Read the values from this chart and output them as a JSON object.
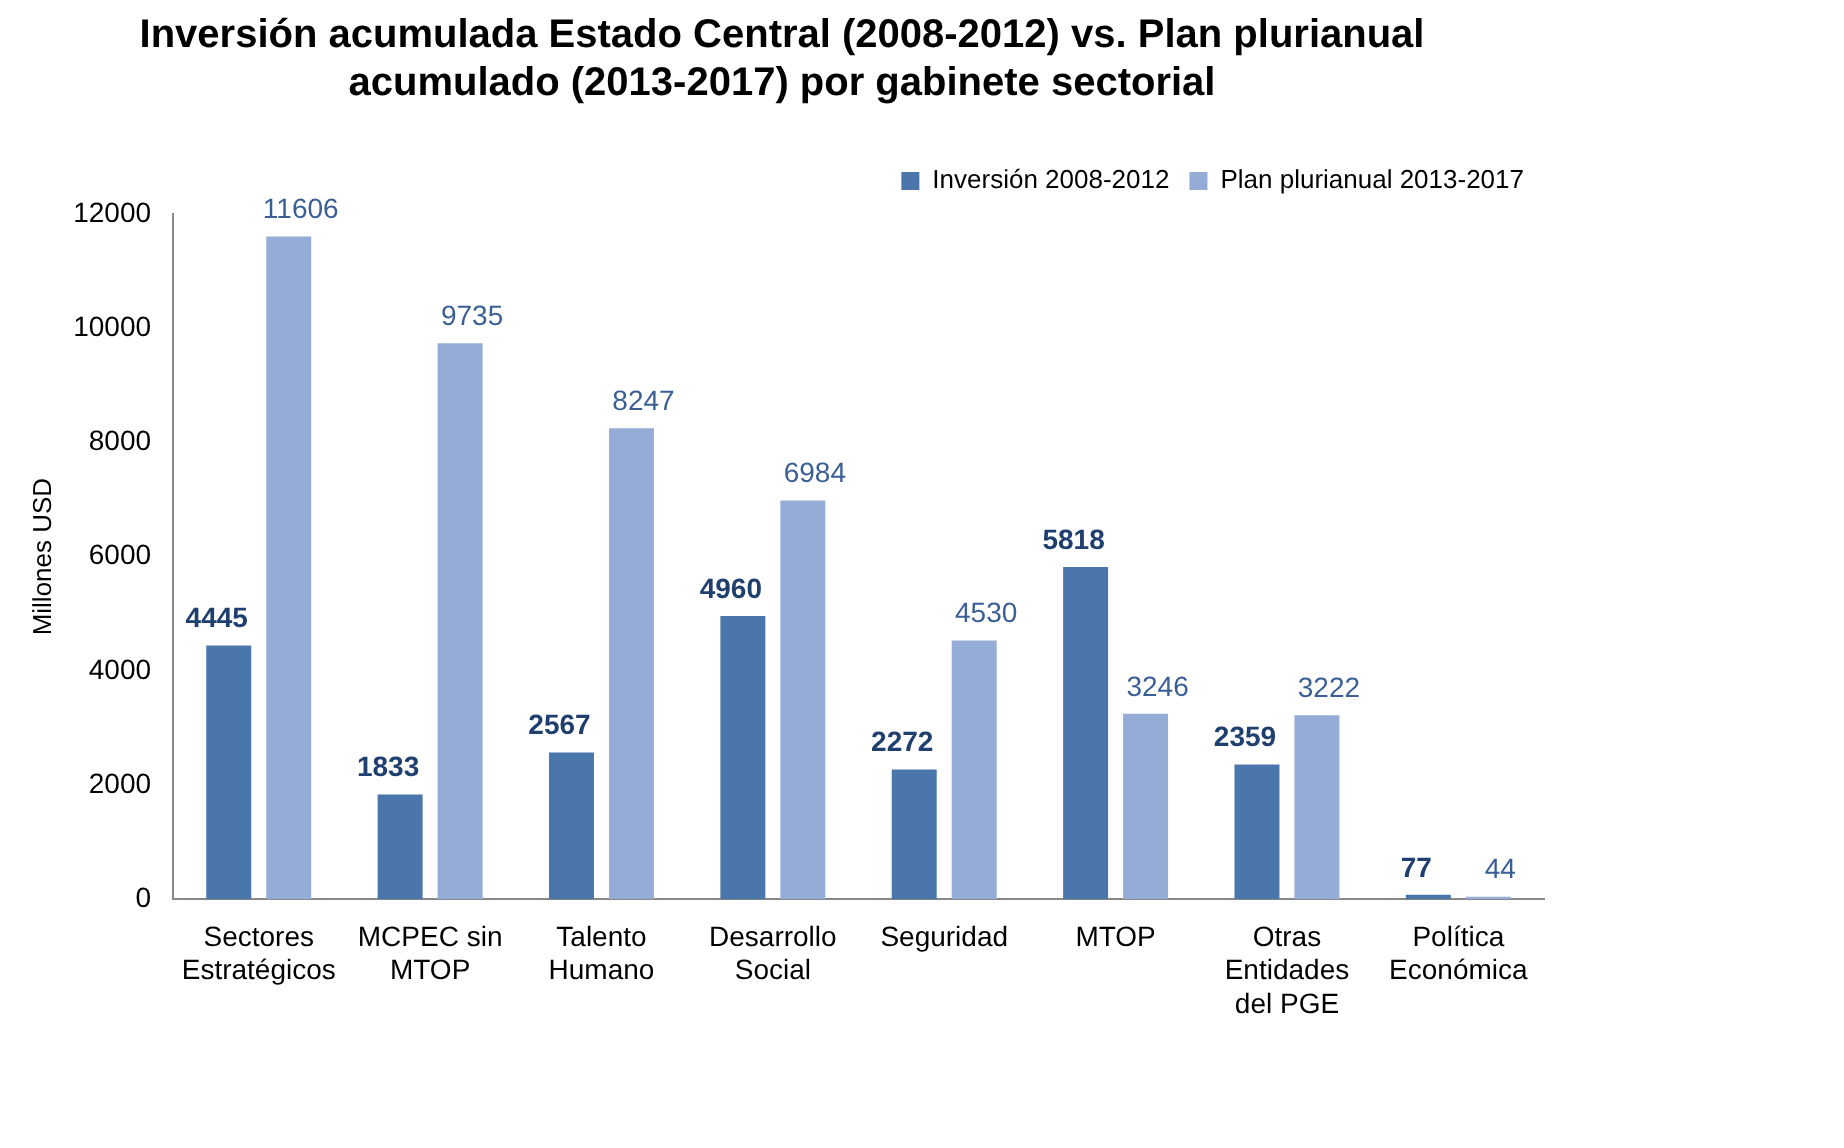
{
  "chart_data": {
    "type": "bar",
    "title": "Inversión acumulada Estado Central (2008-2012) vs. Plan plurianual acumulado (2013-2017) por gabinete sectorial",
    "ylabel": "Millones USD",
    "categories": [
      "Sectores Estratégicos",
      "MCPEC sin MTOP",
      "Talento Humano",
      "Desarrollo Social",
      "Seguridad",
      "MTOP",
      "Otras Entidades del PGE",
      "Política Económica"
    ],
    "series": [
      {
        "name": "Inversión 2008-2012",
        "color": "#4a76ab",
        "values": [
          4445,
          1833,
          2567,
          4960,
          2272,
          5818,
          2359,
          77
        ]
      },
      {
        "name": "Plan plurianual 2013-2017",
        "color": "#95acd6",
        "values": [
          11606,
          9735,
          8247,
          6984,
          4530,
          3246,
          3222,
          44
        ]
      }
    ],
    "ylim": [
      0,
      12000
    ],
    "yticks": [
      0,
      2000,
      4000,
      6000,
      8000,
      10000,
      12000
    ],
    "grid": false,
    "legend": "top right",
    "data_labels": true
  }
}
